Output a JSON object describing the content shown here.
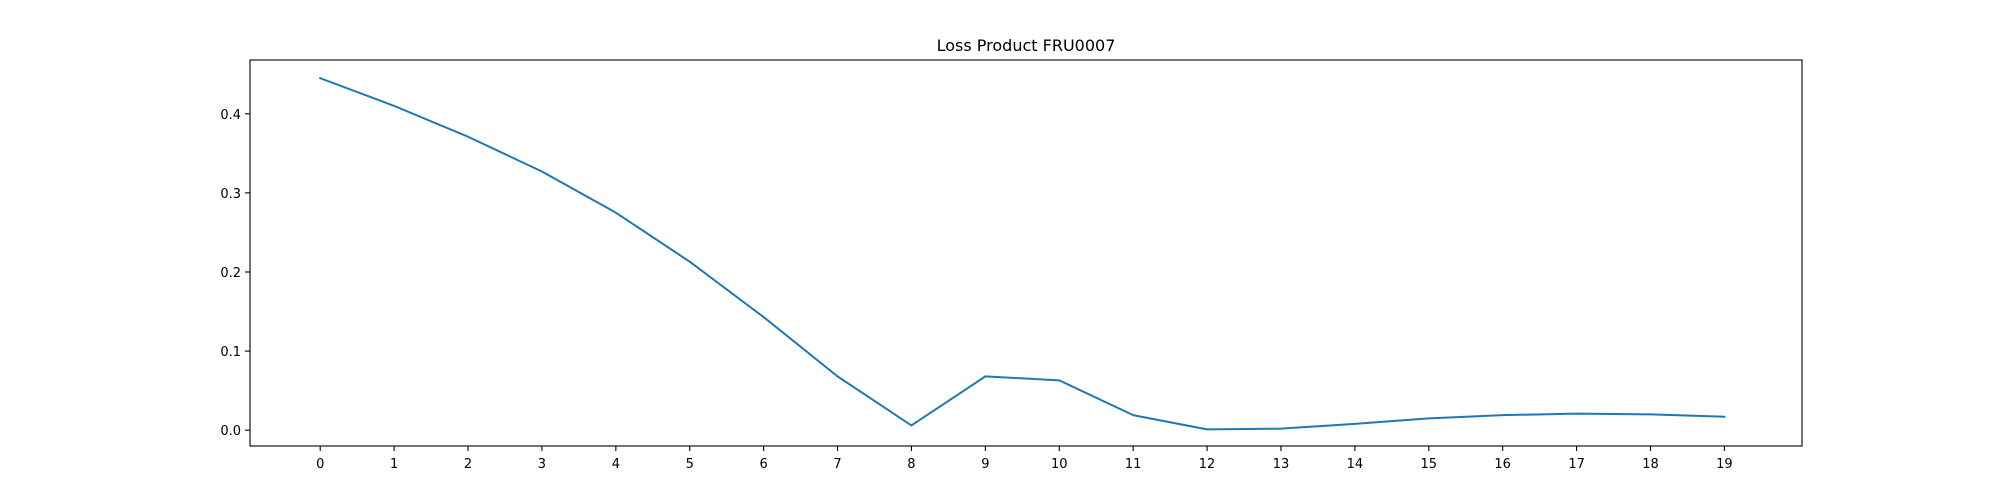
{
  "chart_data": {
    "type": "line",
    "title": "Loss Product FRU0007",
    "xlabel": "",
    "ylabel": "",
    "x": [
      0,
      1,
      2,
      3,
      4,
      5,
      6,
      7,
      8,
      9,
      10,
      11,
      12,
      13,
      14,
      15,
      16,
      17,
      18,
      19
    ],
    "xticks": [
      0,
      1,
      2,
      3,
      4,
      5,
      6,
      7,
      8,
      9,
      10,
      11,
      12,
      13,
      14,
      15,
      16,
      17,
      18,
      19
    ],
    "yticks": [
      0.0,
      0.1,
      0.2,
      0.3,
      0.4
    ],
    "ytick_labels": [
      "0.0",
      "0.1",
      "0.2",
      "0.3",
      "0.4"
    ],
    "xlim": [
      -0.95,
      20.05
    ],
    "ylim": [
      -0.02,
      0.468
    ],
    "grid": false,
    "series": [
      {
        "values": [
          0.445,
          0.41,
          0.371,
          0.327,
          0.275,
          0.213,
          0.143,
          0.068,
          0.006,
          0.068,
          0.063,
          0.019,
          0.001,
          0.002,
          0.008,
          0.015,
          0.019,
          0.021,
          0.02,
          0.017
        ],
        "color": "#1f77b4"
      }
    ]
  }
}
